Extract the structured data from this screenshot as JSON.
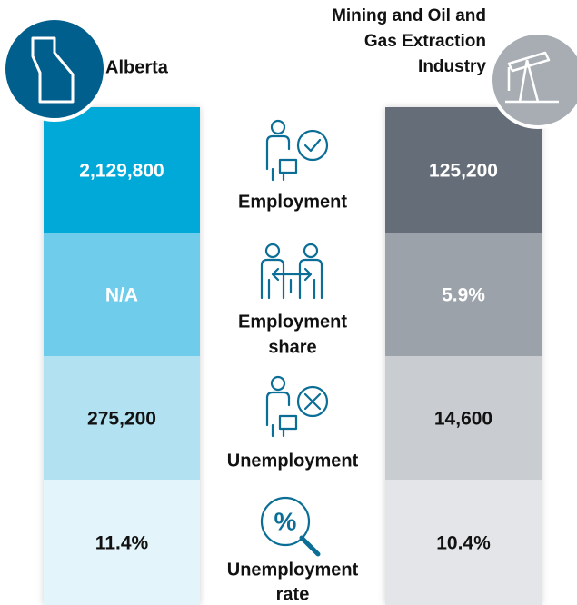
{
  "header": {
    "left": "Alberta",
    "right": [
      "Mining and Oil and",
      "Gas Extraction",
      "Industry"
    ]
  },
  "rows": [
    {
      "label": [
        "Employment"
      ],
      "left": "2,129,800",
      "right": "125,200"
    },
    {
      "label": [
        "Employment",
        "share"
      ],
      "left": "N/A",
      "right": "5.9%"
    },
    {
      "label": [
        "Unemployment"
      ],
      "left": "275,200",
      "right": "14,600"
    },
    {
      "label": [
        "Unemployment",
        "rate"
      ],
      "left": "11.4%",
      "right": "10.4%"
    }
  ]
}
